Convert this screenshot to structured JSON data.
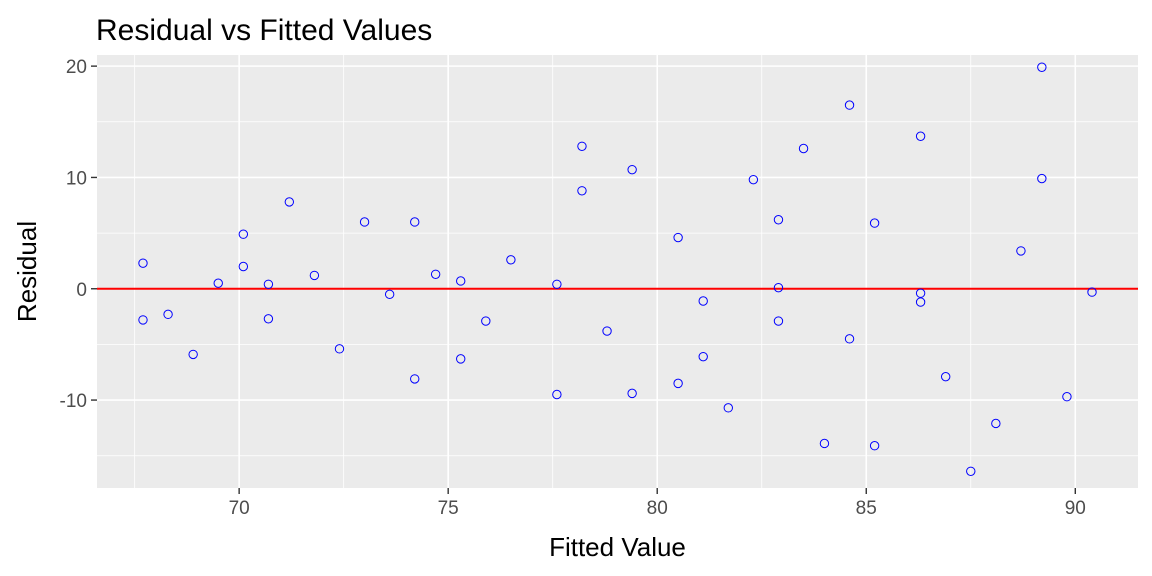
{
  "chart_data": {
    "type": "scatter",
    "title": "Residual vs Fitted Values",
    "xlabel": "Fitted Value",
    "ylabel": "Residual",
    "xlim": [
      66.6,
      91.5
    ],
    "ylim": [
      -17.9,
      21.0
    ],
    "x_ticks": [
      70,
      75,
      80,
      85,
      90
    ],
    "x_tick_labels": [
      "70",
      "75",
      "80",
      "85",
      "90"
    ],
    "y_ticks": [
      -10,
      0,
      10,
      20
    ],
    "y_tick_labels": [
      "-10",
      "0",
      "10",
      "20"
    ],
    "grid": true,
    "panel_background": "#EBEBEB",
    "grid_color": "#FFFFFF",
    "point_color": "#0000FF",
    "hline": {
      "y": 0,
      "color": "#FF0000"
    },
    "points": [
      {
        "x": 67.7,
        "y": 2.3
      },
      {
        "x": 67.7,
        "y": -2.8
      },
      {
        "x": 68.3,
        "y": -2.3
      },
      {
        "x": 68.9,
        "y": -5.9
      },
      {
        "x": 69.5,
        "y": 0.5
      },
      {
        "x": 70.1,
        "y": 4.9
      },
      {
        "x": 70.1,
        "y": 2.0
      },
      {
        "x": 70.7,
        "y": 0.4
      },
      {
        "x": 70.7,
        "y": -2.7
      },
      {
        "x": 71.2,
        "y": 7.8
      },
      {
        "x": 71.8,
        "y": 1.2
      },
      {
        "x": 72.4,
        "y": -5.4
      },
      {
        "x": 73.0,
        "y": 6.0
      },
      {
        "x": 73.6,
        "y": -0.5
      },
      {
        "x": 74.2,
        "y": 6.0
      },
      {
        "x": 74.2,
        "y": -8.1
      },
      {
        "x": 74.7,
        "y": 1.3
      },
      {
        "x": 75.3,
        "y": 0.7
      },
      {
        "x": 75.3,
        "y": -6.3
      },
      {
        "x": 75.9,
        "y": -2.9
      },
      {
        "x": 76.5,
        "y": 2.6
      },
      {
        "x": 77.6,
        "y": 0.4
      },
      {
        "x": 77.6,
        "y": -9.5
      },
      {
        "x": 78.2,
        "y": 12.8
      },
      {
        "x": 78.2,
        "y": 8.8
      },
      {
        "x": 78.8,
        "y": -3.8
      },
      {
        "x": 79.4,
        "y": 10.7
      },
      {
        "x": 79.4,
        "y": -9.4
      },
      {
        "x": 80.5,
        "y": 4.6
      },
      {
        "x": 80.5,
        "y": -8.5
      },
      {
        "x": 81.1,
        "y": -1.1
      },
      {
        "x": 81.1,
        "y": -6.1
      },
      {
        "x": 81.7,
        "y": -10.7
      },
      {
        "x": 82.3,
        "y": 9.8
      },
      {
        "x": 82.9,
        "y": 6.2
      },
      {
        "x": 82.9,
        "y": 0.1
      },
      {
        "x": 82.9,
        "y": -2.9
      },
      {
        "x": 83.5,
        "y": 12.6
      },
      {
        "x": 84.0,
        "y": -13.9
      },
      {
        "x": 84.6,
        "y": 16.5
      },
      {
        "x": 84.6,
        "y": -4.5
      },
      {
        "x": 85.2,
        "y": 5.9
      },
      {
        "x": 85.2,
        "y": -14.1
      },
      {
        "x": 86.3,
        "y": 13.7
      },
      {
        "x": 86.3,
        "y": -0.4
      },
      {
        "x": 86.3,
        "y": -1.2
      },
      {
        "x": 86.9,
        "y": -7.9
      },
      {
        "x": 87.5,
        "y": -16.4
      },
      {
        "x": 88.1,
        "y": -12.1
      },
      {
        "x": 88.7,
        "y": 3.4
      },
      {
        "x": 89.2,
        "y": 19.9
      },
      {
        "x": 89.2,
        "y": 9.9
      },
      {
        "x": 89.8,
        "y": -9.7
      },
      {
        "x": 90.4,
        "y": -0.3
      }
    ]
  }
}
